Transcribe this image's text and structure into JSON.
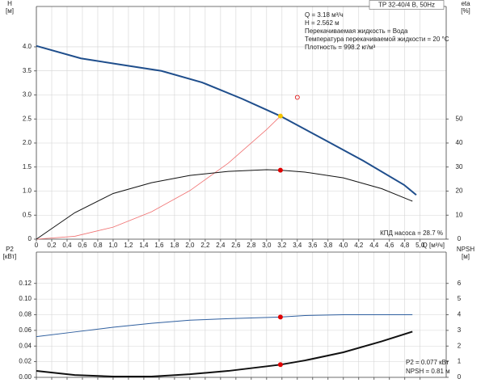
{
  "chart_data": [
    {
      "type": "line",
      "title": "TP 32-40/4 B, 50Hz",
      "annotations": [
        "Q = 3.18 м³/ч",
        "H = 2.562 м",
        "Перекачиваемая жидкость = Вода",
        "Температура перекачиваемой жидкости = 20 °C",
        "Плотность = 998.2 кг/м³"
      ],
      "footnote": "КПД насоса = 28.7 %",
      "ylabel": "H",
      "yunit": "[м]",
      "y2label": "eta",
      "y2unit": "[%]",
      "xlabel": "Q [м³/ч]",
      "xlim": [
        0,
        5.34
      ],
      "xticks": [
        0,
        {
          "value": 0.2,
          "label": "0,2"
        },
        {
          "value": 0.4,
          "label": "0,4"
        },
        {
          "value": 0.6,
          "label": "0,6"
        },
        {
          "value": 0.8,
          "label": "0,8"
        },
        {
          "value": 1.0,
          "label": "1,0"
        },
        {
          "value": 1.2,
          "label": "1,2"
        },
        {
          "value": 1.4,
          "label": "1,4"
        },
        {
          "value": 1.6,
          "label": "1,6"
        },
        {
          "value": 1.8,
          "label": "1,8"
        },
        {
          "value": 2.0,
          "label": "2,0"
        },
        {
          "value": 2.2,
          "label": "2,2"
        },
        {
          "value": 2.4,
          "label": "2,4"
        },
        {
          "value": 2.6,
          "label": "2,6"
        },
        {
          "value": 2.8,
          "label": "2,8"
        },
        {
          "value": 3.0,
          "label": "3,0"
        },
        {
          "value": 3.2,
          "label": "3,2"
        },
        {
          "value": 3.4,
          "label": "3,4"
        },
        {
          "value": 3.6,
          "label": "3,6"
        },
        {
          "value": 3.8,
          "label": "3,8"
        },
        {
          "value": 4.0,
          "label": "4,0"
        },
        {
          "value": 4.2,
          "label": "4,2"
        },
        {
          "value": 4.4,
          "label": "4,4"
        },
        {
          "value": 4.6,
          "label": "4,6"
        },
        {
          "value": 4.8,
          "label": "4,8"
        },
        {
          "value": 5.0,
          "label": "5,0"
        }
      ],
      "ylim": [
        0,
        4.84
      ],
      "yticks": [
        0,
        0.5,
        {
          "value": 1,
          "label": "1.0"
        },
        1.5,
        {
          "value": 2,
          "label": "2.0"
        },
        2.5,
        {
          "value": 3,
          "label": "3.0"
        },
        3.5,
        {
          "value": 4,
          "label": "4.0"
        }
      ],
      "y2lim": [
        0,
        96.8
      ],
      "y2ticks": [
        0,
        10,
        20,
        30,
        40,
        50
      ],
      "grid": true,
      "series": [
        {
          "kind": "line",
          "color": "#f07070",
          "width": 0.8,
          "x": [
            0,
            0.5,
            1.0,
            1.5,
            2.0,
            2.5,
            3.0,
            3.18
          ],
          "values": [
            0,
            0.06,
            0.25,
            0.57,
            1.01,
            1.58,
            2.28,
            2.56
          ]
        },
        {
          "kind": "line",
          "axis": "y2",
          "color": "#111111",
          "width": 1,
          "x": [
            0,
            0.5,
            1.0,
            1.5,
            2.0,
            2.5,
            3.0,
            3.18,
            3.5,
            4.0,
            4.5,
            4.9
          ],
          "values": [
            0,
            11,
            19,
            23.5,
            26.5,
            28.2,
            28.9,
            28.7,
            27.9,
            25.5,
            21,
            15.8
          ]
        },
        {
          "kind": "line",
          "color": "#1f4e8c",
          "width": 2,
          "x": [
            0,
            0.58,
            1.1,
            1.63,
            2.16,
            2.68,
            3.18,
            3.74,
            4.26,
            4.79,
            4.95
          ],
          "values": [
            4.02,
            3.76,
            3.63,
            3.5,
            3.26,
            2.92,
            2.56,
            2.08,
            1.63,
            1.13,
            0.92
          ]
        },
        {
          "kind": "point",
          "color": "#f5c400",
          "x": [
            3.18
          ],
          "values": [
            2.56
          ]
        },
        {
          "kind": "point",
          "axis": "y2",
          "color": "#e00000",
          "x": [
            3.18
          ],
          "values": [
            28.7
          ]
        },
        {
          "kind": "ring",
          "color": "#e00000",
          "x": [
            3.4
          ],
          "values": [
            2.95
          ]
        }
      ]
    },
    {
      "type": "line",
      "footnote_lines": [
        "P2 = 0.077 кВт",
        "NPSH = 0.81 м"
      ],
      "ylabel": "P2",
      "yunit": "[кВт]",
      "y2label": "NPSH",
      "y2unit": "[м]",
      "xlim": [
        0,
        5.34
      ],
      "xticks": [
        0,
        0.2,
        0.4,
        0.6,
        0.8,
        1.0,
        1.2,
        1.4,
        1.6,
        1.8,
        2.0,
        2.2,
        2.4,
        2.6,
        2.8,
        3.0,
        3.2,
        3.4,
        3.6,
        3.8,
        4.0,
        4.2,
        4.4,
        4.6,
        4.8,
        5.0
      ],
      "ylim": [
        0,
        0.16
      ],
      "yticks": [
        {
          "value": 0,
          "label": "0.00"
        },
        {
          "value": 0.02,
          "label": "0.02"
        },
        {
          "value": 0.04,
          "label": "0.04"
        },
        {
          "value": 0.06,
          "label": "0.06"
        },
        {
          "value": 0.08,
          "label": "0.08"
        },
        {
          "value": 0.1,
          "label": "0.10"
        },
        {
          "value": 0.12,
          "label": "0.12"
        }
      ],
      "y2lim": [
        0,
        8
      ],
      "y2ticks": [
        0,
        1,
        2,
        3,
        4,
        5,
        6
      ],
      "grid": true,
      "series": [
        {
          "kind": "line",
          "color": "#2f5f9f",
          "width": 1,
          "x": [
            0,
            0.5,
            1.0,
            1.5,
            2.0,
            2.5,
            3.18,
            3.5,
            4.0,
            4.5,
            4.9
          ],
          "values": [
            0.052,
            0.058,
            0.064,
            0.069,
            0.073,
            0.075,
            0.077,
            0.079,
            0.08,
            0.08,
            0.08
          ]
        },
        {
          "kind": "line",
          "axis": "y2",
          "color": "#111111",
          "width": 2,
          "x": [
            0,
            0.5,
            1.0,
            1.5,
            2.0,
            2.5,
            3.18,
            3.5,
            4.0,
            4.5,
            4.9
          ],
          "values": [
            0.41,
            0.15,
            0.05,
            0.05,
            0.2,
            0.41,
            0.81,
            1.08,
            1.6,
            2.3,
            2.92
          ]
        },
        {
          "kind": "point",
          "color": "#e00000",
          "x": [
            3.18
          ],
          "values": [
            0.077
          ]
        },
        {
          "kind": "point",
          "axis": "y2",
          "color": "#e00000",
          "x": [
            3.18
          ],
          "values": [
            0.81
          ]
        }
      ]
    }
  ]
}
